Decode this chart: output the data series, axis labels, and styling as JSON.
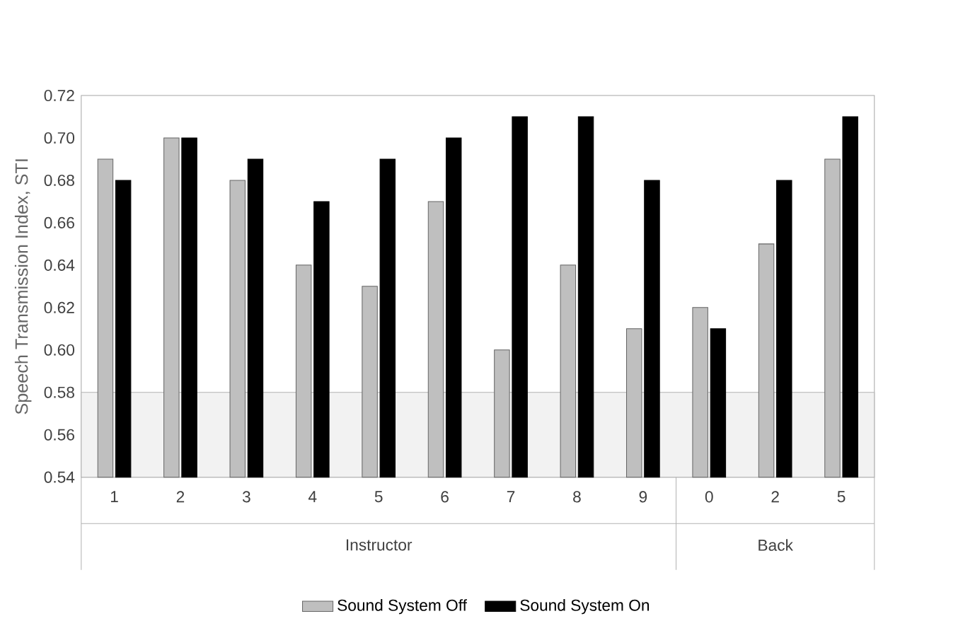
{
  "chart_data": {
    "type": "bar",
    "ylabel": "Speech Transmission Index, STI",
    "categories": [
      "1",
      "2",
      "3",
      "4",
      "5",
      "6",
      "7",
      "8",
      "9",
      "0",
      "2",
      "5"
    ],
    "series": [
      {
        "name": "Sound System Off",
        "color": "#bfbfbf",
        "values": [
          0.69,
          0.7,
          0.68,
          0.64,
          0.63,
          0.67,
          0.6,
          0.64,
          0.61,
          0.62,
          0.65,
          0.69
        ]
      },
      {
        "name": "Sound System On",
        "color": "#000000",
        "values": [
          0.68,
          0.7,
          0.69,
          0.67,
          0.69,
          0.7,
          0.71,
          0.71,
          0.68,
          0.61,
          0.68,
          0.71
        ]
      }
    ],
    "ylim": [
      0.54,
      0.72
    ],
    "yticks": [
      {
        "value": 0.54,
        "label": "0.54"
      },
      {
        "value": 0.56,
        "label": "0.56"
      },
      {
        "value": 0.58,
        "label": "0.58"
      },
      {
        "value": 0.6,
        "label": "0.60"
      },
      {
        "value": 0.62,
        "label": "0.62"
      },
      {
        "value": 0.64,
        "label": "0.64"
      },
      {
        "value": 0.66,
        "label": "0.66"
      },
      {
        "value": 0.68,
        "label": "0.68"
      },
      {
        "value": 0.7,
        "label": "0.70"
      },
      {
        "value": 0.72,
        "label": "0.72"
      }
    ],
    "bands": [
      {
        "axis": "y",
        "from": 0.54,
        "to": 0.58,
        "color": "#f2f2f2"
      }
    ],
    "annotations": [
      "Instructor",
      "Back"
    ],
    "legend": "bottom",
    "grid": false
  }
}
